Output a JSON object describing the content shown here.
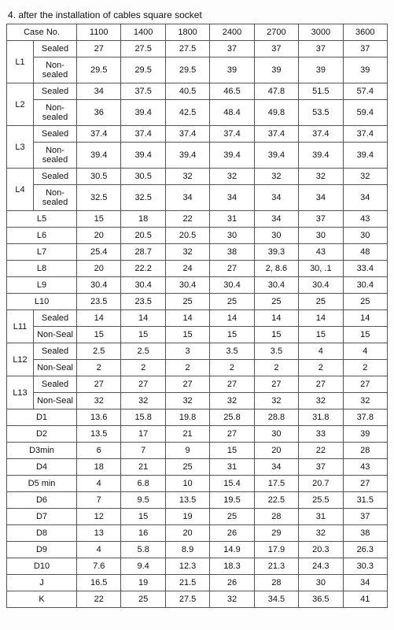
{
  "title": "4. after the installation of cables square socket",
  "headers": {
    "caseNo": "Case No.",
    "columns": [
      "1100",
      "1400",
      "1800",
      "2400",
      "2700",
      "3000",
      "3600"
    ]
  },
  "subLabels": {
    "sealed": "Sealed",
    "nonSealed": "Non-sealed",
    "nonSeal": "Non-Seal"
  },
  "doubleRows": [
    {
      "name": "L1",
      "sealed": [
        "27",
        "27.5",
        "27.5",
        "37",
        "37",
        "37",
        "37"
      ],
      "non": [
        "29.5",
        "29.5",
        "29.5",
        "39",
        "39",
        "39",
        "39"
      ],
      "nonLabel": "nonSealed"
    },
    {
      "name": "L2",
      "sealed": [
        "34",
        "37.5",
        "40.5",
        "46.5",
        "47.8",
        "51.5",
        "57.4"
      ],
      "non": [
        "36",
        "39.4",
        "42.5",
        "48.4",
        "49.8",
        "53.5",
        "59.4"
      ],
      "nonLabel": "nonSealed"
    },
    {
      "name": "L3",
      "sealed": [
        "37.4",
        "37.4",
        "37.4",
        "37.4",
        "37.4",
        "37.4",
        "37.4"
      ],
      "non": [
        "39.4",
        "39.4",
        "39.4",
        "39.4",
        "39.4",
        "39.4",
        "39.4"
      ],
      "nonLabel": "nonSealed"
    },
    {
      "name": "L4",
      "sealed": [
        "30.5",
        "30.5",
        "32",
        "32",
        "32",
        "32",
        "32"
      ],
      "non": [
        "32.5",
        "32.5",
        "34",
        "34",
        "34",
        "34",
        "34"
      ],
      "nonLabel": "nonSealed"
    }
  ],
  "singleRows1": [
    {
      "name": "L5",
      "vals": [
        "15",
        "18",
        "22",
        "31",
        "34",
        "37",
        "43"
      ]
    },
    {
      "name": "L6",
      "vals": [
        "20",
        "20.5",
        "20.5",
        "30",
        "30",
        "30",
        "30"
      ]
    },
    {
      "name": "L7",
      "vals": [
        "25.4",
        "28.7",
        "32",
        "38",
        "39.3",
        "43",
        "48"
      ]
    },
    {
      "name": "L8",
      "vals": [
        "20",
        "22.2",
        "24",
        "27",
        "2, 8.6",
        "30, .1",
        "33.4"
      ]
    },
    {
      "name": "L9",
      "vals": [
        "30.4",
        "30.4",
        "30.4",
        "30.4",
        "30.4",
        "30.4",
        "30.4"
      ]
    },
    {
      "name": "L10",
      "vals": [
        "23.5",
        "23.5",
        "25",
        "25",
        "25",
        "25",
        "25"
      ]
    }
  ],
  "doubleRows2": [
    {
      "name": "L11",
      "sealed": [
        "14",
        "14",
        "14",
        "14",
        "14",
        "14",
        "14"
      ],
      "non": [
        "15",
        "15",
        "15",
        "15",
        "15",
        "15",
        "15"
      ],
      "nonLabel": "nonSeal"
    },
    {
      "name": "L12",
      "sealed": [
        "2.5",
        "2.5",
        "3",
        "3.5",
        "3.5",
        "4",
        "4"
      ],
      "non": [
        "2",
        "2",
        "2",
        "2",
        "2",
        "2",
        "2"
      ],
      "nonLabel": "nonSeal"
    },
    {
      "name": "L13",
      "sealed": [
        "27",
        "27",
        "27",
        "27",
        "27",
        "27",
        "27"
      ],
      "non": [
        "32",
        "32",
        "32",
        "32",
        "32",
        "32",
        "32"
      ],
      "nonLabel": "nonSeal"
    }
  ],
  "singleRows2": [
    {
      "name": "D1",
      "vals": [
        "13.6",
        "15.8",
        "19.8",
        "25.8",
        "28.8",
        "31.8",
        "37.8"
      ]
    },
    {
      "name": "D2",
      "vals": [
        "13.5",
        "17",
        "21",
        "27",
        "30",
        "33",
        "39"
      ]
    },
    {
      "name": "D3min",
      "vals": [
        "6",
        "7",
        "9",
        "15",
        "20",
        "22",
        "28"
      ]
    },
    {
      "name": "D4",
      "vals": [
        "18",
        "21",
        "25",
        "31",
        "34",
        "37",
        "43"
      ]
    },
    {
      "name": "D5 min",
      "vals": [
        "4",
        "6.8",
        "10",
        "15.4",
        "17.5",
        "20.7",
        "27"
      ]
    },
    {
      "name": "D6",
      "vals": [
        "7",
        "9.5",
        "13.5",
        "19.5",
        "22.5",
        "25.5",
        "31.5"
      ]
    },
    {
      "name": "D7",
      "vals": [
        "12",
        "15",
        "19",
        "25",
        "28",
        "31",
        "37"
      ]
    },
    {
      "name": "D8",
      "vals": [
        "13",
        "16",
        "20",
        "26",
        "29",
        "32",
        "38"
      ]
    },
    {
      "name": "D9",
      "vals": [
        "4",
        "5.8",
        "8.9",
        "14.9",
        "17.9",
        "20.3",
        "26.3"
      ]
    },
    {
      "name": "D10",
      "vals": [
        "7.6",
        "9.4",
        "12.3",
        "18.3",
        "21.3",
        "24.3",
        "30.3"
      ]
    },
    {
      "name": "J",
      "vals": [
        "16.5",
        "19",
        "21.5",
        "26",
        "28",
        "30",
        "34"
      ]
    },
    {
      "name": "K",
      "vals": [
        "22",
        "25",
        "27.5",
        "32",
        "34.5",
        "36.5",
        "41"
      ]
    }
  ]
}
